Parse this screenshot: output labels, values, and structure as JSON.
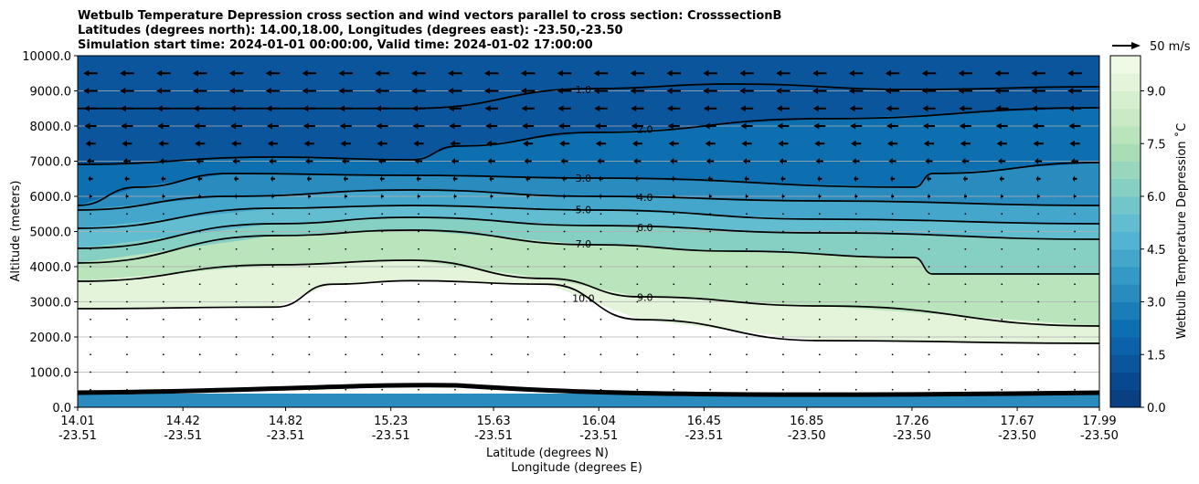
{
  "chart_data": {
    "type": "contour",
    "title_lines": [
      "Wetbulb Temperature Depression cross section and wind vectors parallel to cross section: CrosssectionB",
      "Latitudes (degrees north): 14.00,18.00, Longitudes (degrees east): -23.50,-23.50",
      "Simulation start time: 2024-01-01 00:00:00, Valid time: 2024-01-02 17:00:00"
    ],
    "ylabel": "Altitude (meters)",
    "xlabel_lat": "Latitude (degrees N)",
    "xlabel_lon": "Longitude (degrees E)",
    "xlim": [
      14.01,
      17.99
    ],
    "ylim": [
      0,
      10000
    ],
    "grid": "horizontal",
    "yticks": [
      "0.0",
      "1000.0",
      "2000.0",
      "3000.0",
      "4000.0",
      "5000.0",
      "6000.0",
      "7000.0",
      "8000.0",
      "9000.0",
      "10000.0"
    ],
    "xticks": [
      {
        "lat": "14.01",
        "lon": "-23.51"
      },
      {
        "lat": "14.42",
        "lon": "-23.51"
      },
      {
        "lat": "14.82",
        "lon": "-23.51"
      },
      {
        "lat": "15.23",
        "lon": "-23.51"
      },
      {
        "lat": "15.63",
        "lon": "-23.51"
      },
      {
        "lat": "16.04",
        "lon": "-23.51"
      },
      {
        "lat": "16.45",
        "lon": "-23.51"
      },
      {
        "lat": "16.85",
        "lon": "-23.50"
      },
      {
        "lat": "17.26",
        "lon": "-23.50"
      },
      {
        "lat": "17.67",
        "lon": "-23.50"
      },
      {
        "lat": "17.99",
        "lon": "-23.50"
      }
    ],
    "colorbar": {
      "label": "Wetbulb Temperature Depression $^\\circ$C",
      "label_display": "Wetbulb Temperature Depression ˚C",
      "range": [
        0,
        10
      ],
      "ticks": [
        "0.0",
        "1.5",
        "3.0",
        "4.5",
        "6.0",
        "7.5",
        "9.0"
      ],
      "colors": [
        "#084081",
        "#08488e",
        "#0a559c",
        "#0b62a8",
        "#0d6fb0",
        "#1a7db8",
        "#2a8bbf",
        "#3599c6",
        "#44a6cb",
        "#52b3d2",
        "#62bdd0",
        "#72c6ca",
        "#85cfc3",
        "#98d6bd",
        "#a9ddb6",
        "#bae4bc",
        "#c9eac4",
        "#d6efce",
        "#e3f4da",
        "#eef9e6"
      ]
    },
    "wind_reference": "50 m/s",
    "wind_u_profile": [
      {
        "alt": 9500,
        "u": -25
      },
      {
        "alt": 9000,
        "u": -25
      },
      {
        "alt": 8500,
        "u": -23
      },
      {
        "alt": 8000,
        "u": -21
      },
      {
        "alt": 7500,
        "u": -18
      },
      {
        "alt": 7000,
        "u": -13
      },
      {
        "alt": 6500,
        "u": -8
      },
      {
        "alt": 6000,
        "u": -5
      },
      {
        "alt": 5500,
        "u": -3
      },
      {
        "alt": 5000,
        "u": -2
      },
      {
        "alt": 4500,
        "u": -1
      },
      {
        "alt": 4000,
        "u": -1
      },
      {
        "alt": 3500,
        "u": -0.5
      },
      {
        "alt": 3000,
        "u": -0.5
      },
      {
        "alt": 2500,
        "u": 0.5
      },
      {
        "alt": 2000,
        "u": 0.5
      },
      {
        "alt": 1500,
        "u": 0.5
      },
      {
        "alt": 1000,
        "u": 0.5
      },
      {
        "alt": 500,
        "u": 0.5
      }
    ],
    "contours": [
      {
        "level": 1.0,
        "label": "1.0",
        "points": [
          [
            14.01,
            8500
          ],
          [
            15.31,
            8500
          ],
          [
            16.02,
            9065
          ],
          [
            16.56,
            9195
          ],
          [
            17.27,
            9039
          ],
          [
            17.99,
            9117
          ]
        ]
      },
      {
        "level": 2.0,
        "label": "2.0",
        "points": [
          [
            14.01,
            6909
          ],
          [
            14.78,
            7117
          ],
          [
            15.31,
            7039
          ],
          [
            15.49,
            7429
          ],
          [
            16.02,
            7818
          ],
          [
            16.91,
            8208
          ],
          [
            17.99,
            8519
          ]
        ]
      },
      {
        "level": 3.0,
        "label": "3.0",
        "points": [
          [
            14.01,
            5740
          ],
          [
            14.24,
            6260
          ],
          [
            14.6,
            6649
          ],
          [
            15.31,
            6597
          ],
          [
            16.02,
            6519
          ],
          [
            17.27,
            6260
          ],
          [
            17.34,
            6649
          ],
          [
            17.99,
            6961
          ]
        ]
      },
      {
        "level": 4.0,
        "label": "4.0",
        "points": [
          [
            14.01,
            5610
          ],
          [
            14.6,
            6000
          ],
          [
            15.31,
            6182
          ],
          [
            16.02,
            6000
          ],
          [
            16.91,
            5870
          ],
          [
            17.99,
            5740
          ]
        ]
      },
      {
        "level": 5.0,
        "label": "5.0",
        "points": [
          [
            14.01,
            5091
          ],
          [
            14.78,
            5662
          ],
          [
            15.31,
            5740
          ],
          [
            16.02,
            5610
          ],
          [
            16.91,
            5351
          ],
          [
            17.99,
            5221
          ]
        ]
      },
      {
        "level": 6.0,
        "label": "6.0",
        "points": [
          [
            14.01,
            4519
          ],
          [
            14.78,
            5221
          ],
          [
            15.31,
            5403
          ],
          [
            16.02,
            5169
          ],
          [
            16.91,
            4961
          ],
          [
            17.99,
            4779
          ]
        ]
      },
      {
        "level": 7.0,
        "label": "7.0",
        "points": [
          [
            14.01,
            4104
          ],
          [
            14.78,
            4883
          ],
          [
            15.31,
            5039
          ],
          [
            16.02,
            4623
          ],
          [
            16.56,
            4442
          ],
          [
            17.27,
            4260
          ],
          [
            17.34,
            3792
          ],
          [
            17.99,
            3792
          ]
        ]
      },
      {
        "level": 9.0,
        "label": "9.0",
        "points": [
          [
            14.01,
            3584
          ],
          [
            14.78,
            4052
          ],
          [
            15.31,
            4182
          ],
          [
            15.84,
            3662
          ],
          [
            16.2,
            3143
          ],
          [
            16.91,
            2883
          ],
          [
            17.99,
            2312
          ]
        ]
      },
      {
        "level": 10.0,
        "label": "10.0",
        "points": [
          [
            14.01,
            2805
          ],
          [
            14.78,
            2850
          ],
          [
            15.0,
            3500
          ],
          [
            15.31,
            3600
          ],
          [
            15.84,
            3500
          ],
          [
            16.2,
            2494
          ],
          [
            16.91,
            1896
          ],
          [
            17.99,
            1818
          ]
        ]
      }
    ]
  }
}
